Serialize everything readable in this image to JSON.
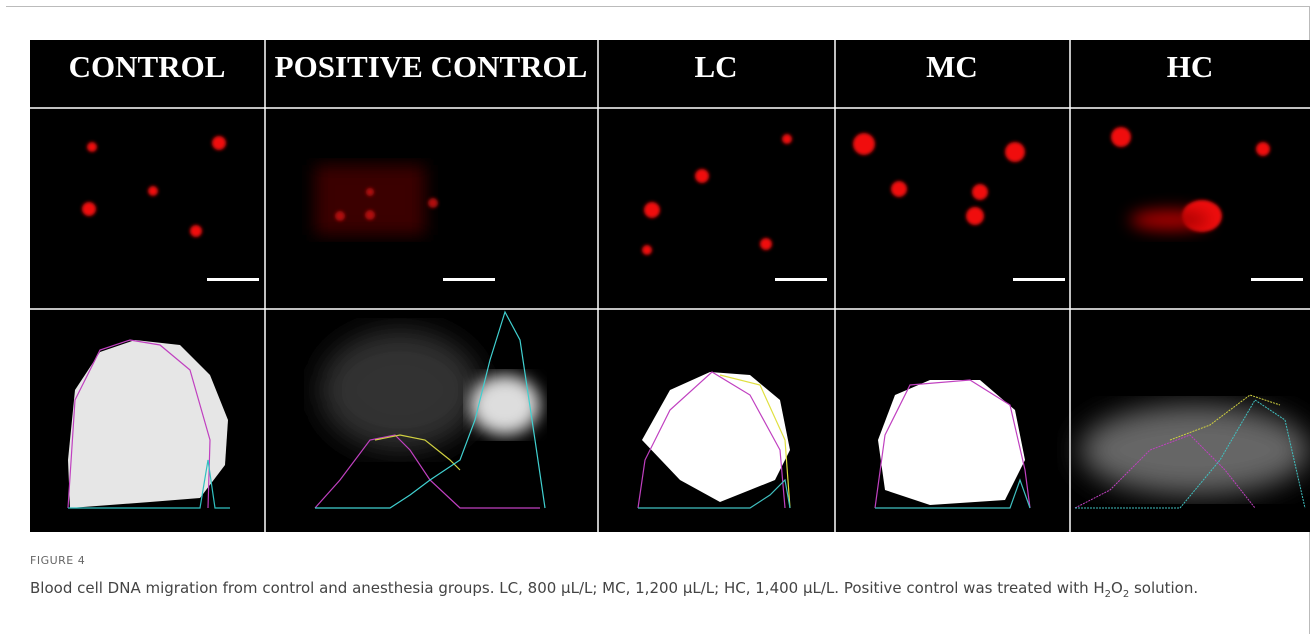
{
  "figure": {
    "column_headers": [
      "CONTROL",
      "POSITIVE CONTROL",
      "LC",
      "MC",
      "HC"
    ],
    "label": "FIGURE 4",
    "caption_parts": [
      "Blood cell DNA migration from control and anesthesia groups. LC, 800 µL/L; MC, 1,200 µL/L; HC, 1,400 µL/L. Positive control was treated with H",
      "2",
      "O",
      "2",
      " solution."
    ]
  }
}
